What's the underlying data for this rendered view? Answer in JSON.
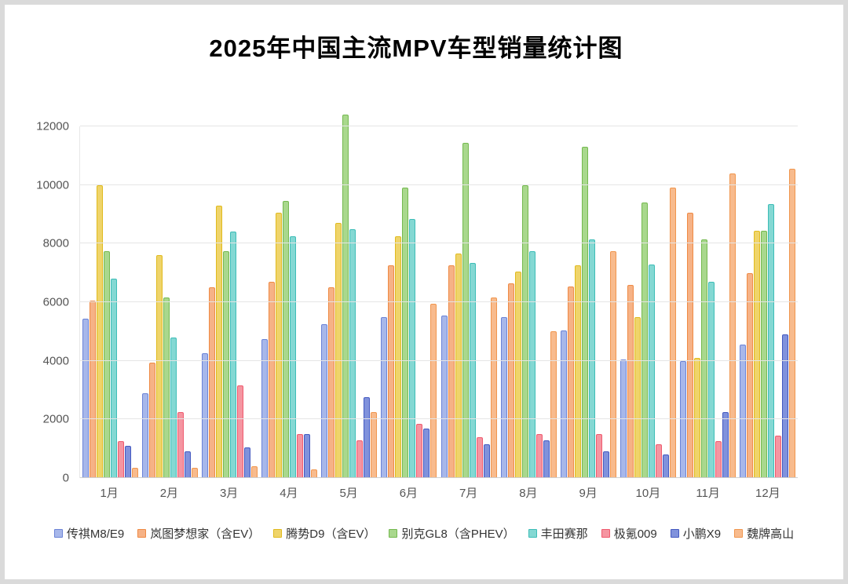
{
  "title": "2025年中国主流MPV车型销量统计图",
  "chart_data": {
    "type": "bar",
    "title": "2025年中国主流MPV车型销量统计图",
    "categories": [
      "1月",
      "2月",
      "3月",
      "4月",
      "5月",
      "6月",
      "7月",
      "8月",
      "9月",
      "10月",
      "11月",
      "12月"
    ],
    "series": [
      {
        "name": "传祺M8/E9",
        "color": "#6b83d6",
        "fill": "#a7b7ea",
        "values": [
          5450,
          2900,
          4250,
          4750,
          5250,
          5500,
          5550,
          5500,
          5050,
          4050,
          4000,
          4550
        ]
      },
      {
        "name": "岚图梦想家（含EV）",
        "color": "#ef8a44",
        "fill": "#f6b286",
        "values": [
          6050,
          3950,
          6500,
          6700,
          6500,
          7250,
          7250,
          6650,
          6550,
          6600,
          9050,
          7000
        ]
      },
      {
        "name": "腾势D9（含EV）",
        "color": "#e0ba1e",
        "fill": "#efd46a",
        "values": [
          10000,
          7600,
          9300,
          9050,
          8700,
          8250,
          7650,
          7050,
          7250,
          5500,
          4100,
          8450
        ]
      },
      {
        "name": "别克GL8（含PHEV）",
        "color": "#74b94f",
        "fill": "#a9d88d",
        "values": [
          7750,
          6150,
          7750,
          9450,
          12400,
          9900,
          11450,
          10000,
          11300,
          9400,
          8150,
          8450
        ]
      },
      {
        "name": "丰田赛那",
        "color": "#3dbdb7",
        "fill": "#84d8d3",
        "values": [
          6800,
          4800,
          8400,
          8250,
          8500,
          8850,
          7350,
          7750,
          8150,
          7300,
          6700,
          9350
        ]
      },
      {
        "name": "极氪009",
        "color": "#ef5a6e",
        "fill": "#f595a1",
        "values": [
          1250,
          2250,
          3150,
          1500,
          1300,
          1850,
          1400,
          1500,
          1500,
          1150,
          1250,
          1450
        ]
      },
      {
        "name": "小鹏X9",
        "color": "#4459c0",
        "fill": "#8092dc",
        "values": [
          1100,
          900,
          1050,
          1500,
          2750,
          1700,
          1150,
          1300,
          900,
          800,
          2250,
          4900
        ]
      },
      {
        "name": "魏牌高山",
        "color": "#f0964e",
        "fill": "#f8bb8d",
        "values": [
          350,
          350,
          400,
          300,
          2250,
          5950,
          6150,
          5000,
          7750,
          9900,
          10400,
          10550
        ]
      }
    ],
    "ylim": [
      0,
      12000
    ],
    "yticks": [
      0,
      2000,
      4000,
      6000,
      8000,
      10000,
      12000
    ],
    "grid": true,
    "legend_position": "bottom"
  }
}
